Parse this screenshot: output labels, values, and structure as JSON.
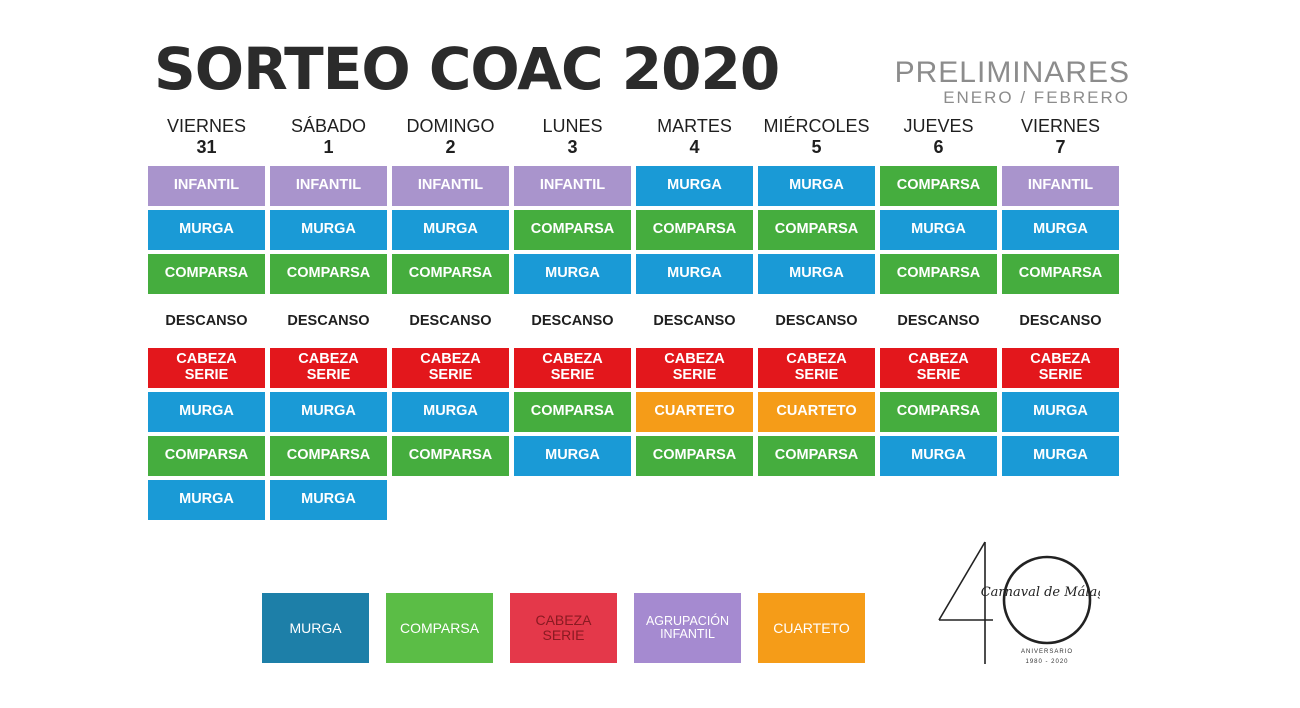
{
  "header": {
    "title": "SORTEO COAC 2020",
    "subtitle_line1": "PRELIMINARES",
    "subtitle_line2": "ENERO / FEBRERO"
  },
  "days": [
    {
      "name": "VIERNES",
      "num": "31",
      "top": [
        {
          "label": "INFANTIL",
          "type": "infantil"
        },
        {
          "label": "MURGA",
          "type": "murga"
        },
        {
          "label": "COMPARSA",
          "type": "comparsa"
        }
      ],
      "rest": "DESCANSO",
      "bottom": [
        {
          "label": "CABEZA\nSERIE",
          "type": "cabeza"
        },
        {
          "label": "MURGA",
          "type": "murga"
        },
        {
          "label": "COMPARSA",
          "type": "comparsa"
        },
        {
          "label": "MURGA",
          "type": "murga"
        }
      ]
    },
    {
      "name": "SÁBADO",
      "num": "1",
      "top": [
        {
          "label": "INFANTIL",
          "type": "infantil"
        },
        {
          "label": "MURGA",
          "type": "murga"
        },
        {
          "label": "COMPARSA",
          "type": "comparsa"
        }
      ],
      "rest": "DESCANSO",
      "bottom": [
        {
          "label": "CABEZA\nSERIE",
          "type": "cabeza"
        },
        {
          "label": "MURGA",
          "type": "murga"
        },
        {
          "label": "COMPARSA",
          "type": "comparsa"
        },
        {
          "label": "MURGA",
          "type": "murga"
        }
      ]
    },
    {
      "name": "DOMINGO",
      "num": "2",
      "top": [
        {
          "label": "INFANTIL",
          "type": "infantil"
        },
        {
          "label": "MURGA",
          "type": "murga"
        },
        {
          "label": "COMPARSA",
          "type": "comparsa"
        }
      ],
      "rest": "DESCANSO",
      "bottom": [
        {
          "label": "CABEZA\nSERIE",
          "type": "cabeza"
        },
        {
          "label": "MURGA",
          "type": "murga"
        },
        {
          "label": "COMPARSA",
          "type": "comparsa"
        }
      ]
    },
    {
      "name": "LUNES",
      "num": "3",
      "top": [
        {
          "label": "INFANTIL",
          "type": "infantil"
        },
        {
          "label": "COMPARSA",
          "type": "comparsa"
        },
        {
          "label": "MURGA",
          "type": "murga"
        }
      ],
      "rest": "DESCANSO",
      "bottom": [
        {
          "label": "CABEZA\nSERIE",
          "type": "cabeza"
        },
        {
          "label": "COMPARSA",
          "type": "comparsa"
        },
        {
          "label": "MURGA",
          "type": "murga"
        }
      ]
    },
    {
      "name": "MARTES",
      "num": "4",
      "top": [
        {
          "label": "MURGA",
          "type": "murga"
        },
        {
          "label": "COMPARSA",
          "type": "comparsa"
        },
        {
          "label": "MURGA",
          "type": "murga"
        }
      ],
      "rest": "DESCANSO",
      "bottom": [
        {
          "label": "CABEZA\nSERIE",
          "type": "cabeza"
        },
        {
          "label": "CUARTETO",
          "type": "cuarteto"
        },
        {
          "label": "COMPARSA",
          "type": "comparsa"
        }
      ]
    },
    {
      "name": "MIÉRCOLES",
      "num": "5",
      "top": [
        {
          "label": "MURGA",
          "type": "murga"
        },
        {
          "label": "COMPARSA",
          "type": "comparsa"
        },
        {
          "label": "MURGA",
          "type": "murga"
        }
      ],
      "rest": "DESCANSO",
      "bottom": [
        {
          "label": "CABEZA\nSERIE",
          "type": "cabeza"
        },
        {
          "label": "CUARTETO",
          "type": "cuarteto"
        },
        {
          "label": "COMPARSA",
          "type": "comparsa"
        }
      ]
    },
    {
      "name": "JUEVES",
      "num": "6",
      "top": [
        {
          "label": "COMPARSA",
          "type": "comparsa"
        },
        {
          "label": "MURGA",
          "type": "murga"
        },
        {
          "label": "COMPARSA",
          "type": "comparsa"
        }
      ],
      "rest": "DESCANSO",
      "bottom": [
        {
          "label": "CABEZA\nSERIE",
          "type": "cabeza"
        },
        {
          "label": "COMPARSA",
          "type": "comparsa"
        },
        {
          "label": "MURGA",
          "type": "murga"
        }
      ]
    },
    {
      "name": "VIERNES",
      "num": "7",
      "top": [
        {
          "label": "INFANTIL",
          "type": "infantil"
        },
        {
          "label": "MURGA",
          "type": "murga"
        },
        {
          "label": "COMPARSA",
          "type": "comparsa"
        }
      ],
      "rest": "DESCANSO",
      "bottom": [
        {
          "label": "CABEZA\nSERIE",
          "type": "cabeza"
        },
        {
          "label": "MURGA",
          "type": "murga"
        },
        {
          "label": "MURGA",
          "type": "murga"
        }
      ]
    }
  ],
  "legend": [
    {
      "label": "MURGA",
      "type": "lm"
    },
    {
      "label": "COMPARSA",
      "type": "lc"
    },
    {
      "label": "CABEZA\nSERIE",
      "type": "lz"
    },
    {
      "label": "AGRUPACIÓN\nINFANTIL",
      "type": "li"
    },
    {
      "label": "CUARTETO",
      "type": "lq"
    }
  ],
  "logo": {
    "brand": "Carnaval de Málaga",
    "line1": "ANIVERSARIO",
    "line2": "1980 - 2020"
  },
  "colors": {
    "murga": "#1a9ad6",
    "comparsa": "#45ad3e",
    "cabeza_serie": "#e3171c",
    "infantil": "#a994cc",
    "cuarteto": "#f59c18"
  }
}
